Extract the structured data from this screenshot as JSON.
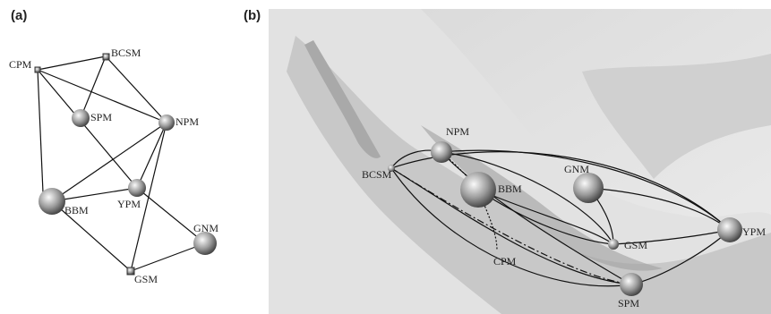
{
  "panel_a": {
    "label": "(a)",
    "nodes": [
      "CPM",
      "BCSM",
      "SPM",
      "NPM",
      "YPM",
      "BBM",
      "GNM",
      "GSM"
    ]
  },
  "panel_b": {
    "label": "(b)",
    "nodes": [
      "NPM",
      "BCSM",
      "BBM",
      "GNM",
      "GSM",
      "YPM",
      "CPM",
      "SPM"
    ]
  }
}
